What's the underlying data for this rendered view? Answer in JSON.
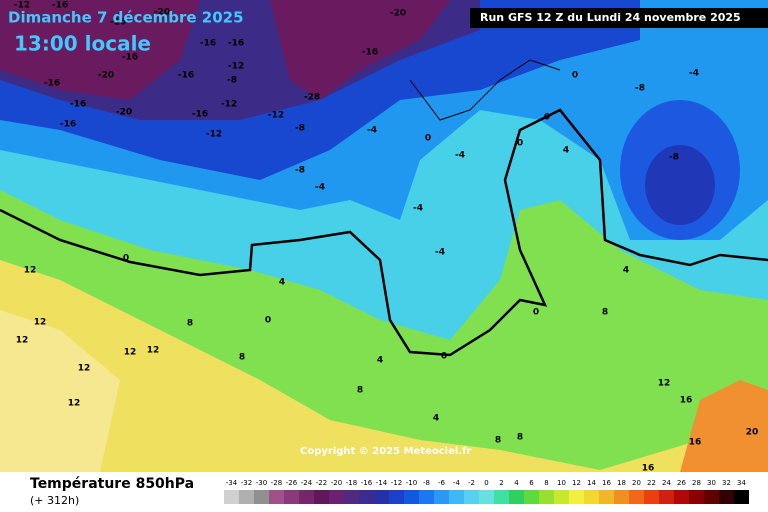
{
  "header": {
    "date": "Dimanche 7 décembre 2025",
    "time": "13:00 locale",
    "run": "Run GFS 12 Z du Lundi 24 novembre 2025"
  },
  "map": {
    "copyright": "Copyright © 2025 Meteociel.fr",
    "contour_labels": [
      "-12",
      "-16",
      "-20",
      "-16",
      "-16",
      "-16",
      "-16",
      "-20",
      "-12",
      "-8",
      "-16",
      "-16",
      "-16",
      "-20",
      "-12",
      "-16",
      "-16",
      "-12",
      "-12",
      "-28",
      "-8",
      "-8",
      "-4",
      "-20",
      "-16",
      "-4",
      "0",
      "-4",
      "-4",
      "-4",
      "0",
      "4",
      "0",
      "0",
      "-8",
      "-4",
      "-8",
      "0",
      "12",
      "4",
      "0",
      "12",
      "12",
      "12",
      "12",
      "8",
      "8",
      "12",
      "12",
      "4",
      "8",
      "0",
      "0",
      "4",
      "8",
      "12",
      "16",
      "16",
      "16",
      "20",
      "4",
      "8",
      "8"
    ]
  },
  "legend": {
    "title": "Température 850hPa",
    "subtitle": "(+ 312h)",
    "scale": {
      "values": [
        -34,
        -32,
        -30,
        -28,
        -26,
        -24,
        -22,
        -20,
        -18,
        -16,
        -14,
        -12,
        -10,
        -8,
        -6,
        -4,
        -2,
        0,
        2,
        4,
        6,
        8,
        10,
        12,
        14,
        16,
        18,
        20,
        22,
        24,
        26,
        28,
        30,
        32,
        34
      ],
      "colors": [
        "#d0d0d0",
        "#b0b0b0",
        "#909090",
        "#a0508a",
        "#8a3a7a",
        "#74286a",
        "#60185a",
        "#6c2070",
        "#502a80",
        "#3c2c90",
        "#2830a8",
        "#1c40c8",
        "#1458e0",
        "#1c78f0",
        "#2c98f4",
        "#40b8f4",
        "#58d0f0",
        "#68e0e0",
        "#40e0a0",
        "#30d060",
        "#60d840",
        "#98e030",
        "#c8e830",
        "#f0f040",
        "#f0d830",
        "#f0b828",
        "#f09020",
        "#f06818",
        "#e84010",
        "#d02010",
        "#b00808",
        "#880000",
        "#600000",
        "#300000",
        "#000000"
      ]
    }
  }
}
